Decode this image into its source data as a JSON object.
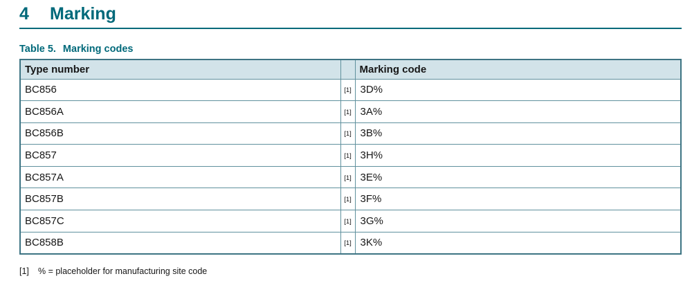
{
  "page": {
    "heading": {
      "number": "4",
      "title": "Marking"
    },
    "caption": {
      "label": "Table 5.",
      "title": "Marking codes"
    },
    "table": {
      "headers": {
        "type_number": "Type number",
        "footnote_col": "",
        "marking_code": "Marking code"
      },
      "rows": [
        {
          "type_number": "BC856",
          "footnote_ref": "[1]",
          "marking_code": "3D%"
        },
        {
          "type_number": "BC856A",
          "footnote_ref": "[1]",
          "marking_code": "3A%"
        },
        {
          "type_number": "BC856B",
          "footnote_ref": "[1]",
          "marking_code": "3B%"
        },
        {
          "type_number": "BC857",
          "footnote_ref": "[1]",
          "marking_code": "3H%"
        },
        {
          "type_number": "BC857A",
          "footnote_ref": "[1]",
          "marking_code": "3E%"
        },
        {
          "type_number": "BC857B",
          "footnote_ref": "[1]",
          "marking_code": "3F%"
        },
        {
          "type_number": "BC857C",
          "footnote_ref": "[1]",
          "marking_code": "3G%"
        },
        {
          "type_number": "BC858B",
          "footnote_ref": "[1]",
          "marking_code": "3K%"
        }
      ]
    },
    "footnote": {
      "marker": "[1]",
      "text": "% = placeholder for manufacturing site code"
    },
    "colors": {
      "accent_teal": "#00697A",
      "table_border_outer": "#3D7483",
      "table_border_inner": "#5F909D",
      "header_bg": "#D2E3E9",
      "text": "#161616"
    }
  }
}
